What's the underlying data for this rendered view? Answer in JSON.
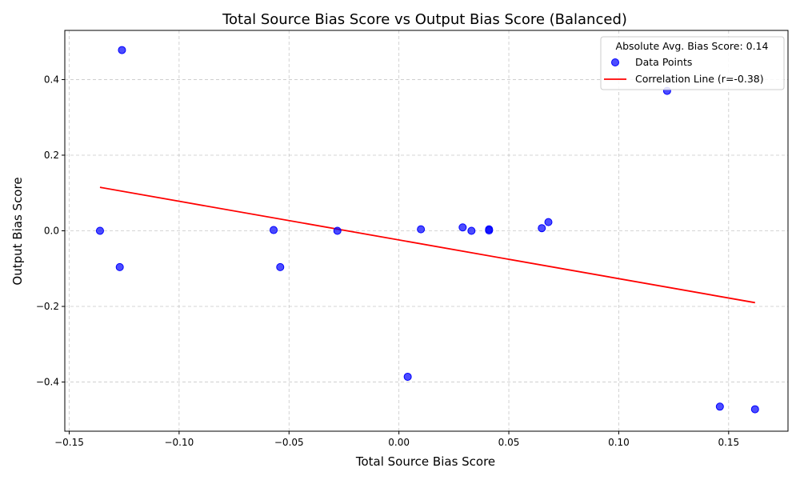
{
  "chart_data": {
    "type": "scatter",
    "title": "Total Source Bias Score vs Output Bias Score (Balanced)",
    "xlabel": "Total Source Bias Score",
    "ylabel": "Output Bias Score",
    "xlim": [
      -0.152,
      0.177
    ],
    "ylim": [
      -0.53,
      0.53
    ],
    "grid": true,
    "x_ticks": [
      -0.15,
      -0.1,
      -0.05,
      0.0,
      0.05,
      0.1,
      0.15
    ],
    "x_tick_labels": [
      "−0.15",
      "−0.10",
      "−0.05",
      "0.00",
      "0.05",
      "0.10",
      "0.15"
    ],
    "y_ticks": [
      -0.4,
      -0.2,
      0.0,
      0.2,
      0.4
    ],
    "y_tick_labels": [
      "−0.4",
      "−0.2",
      "0.0",
      "0.2",
      "0.4"
    ],
    "legend": {
      "position": "top-right",
      "title": "Absolute Avg. Bias Score: 0.14",
      "entries": [
        "Data Points",
        "Correlation Line (r=-0.38)"
      ]
    },
    "series": [
      {
        "name": "Data Points",
        "kind": "scatter",
        "color": "#0000ff",
        "points": [
          {
            "x": -0.126,
            "y": 0.478
          },
          {
            "x": -0.136,
            "y": 0.0
          },
          {
            "x": -0.127,
            "y": -0.096
          },
          {
            "x": -0.057,
            "y": 0.002
          },
          {
            "x": -0.054,
            "y": -0.096
          },
          {
            "x": -0.028,
            "y": 0.0
          },
          {
            "x": 0.004,
            "y": -0.386
          },
          {
            "x": 0.01,
            "y": 0.004
          },
          {
            "x": 0.029,
            "y": 0.009
          },
          {
            "x": 0.033,
            "y": 0.0
          },
          {
            "x": 0.041,
            "y": 0.004
          },
          {
            "x": 0.041,
            "y": 0.001
          },
          {
            "x": 0.065,
            "y": 0.007
          },
          {
            "x": 0.068,
            "y": 0.023
          },
          {
            "x": 0.122,
            "y": 0.37
          },
          {
            "x": 0.146,
            "y": -0.465
          },
          {
            "x": 0.162,
            "y": -0.472
          }
        ]
      },
      {
        "name": "Correlation Line (r=-0.38)",
        "kind": "line",
        "color": "#ff0000",
        "points": [
          {
            "x": -0.136,
            "y": 0.115
          },
          {
            "x": 0.162,
            "y": -0.19
          }
        ]
      }
    ]
  }
}
